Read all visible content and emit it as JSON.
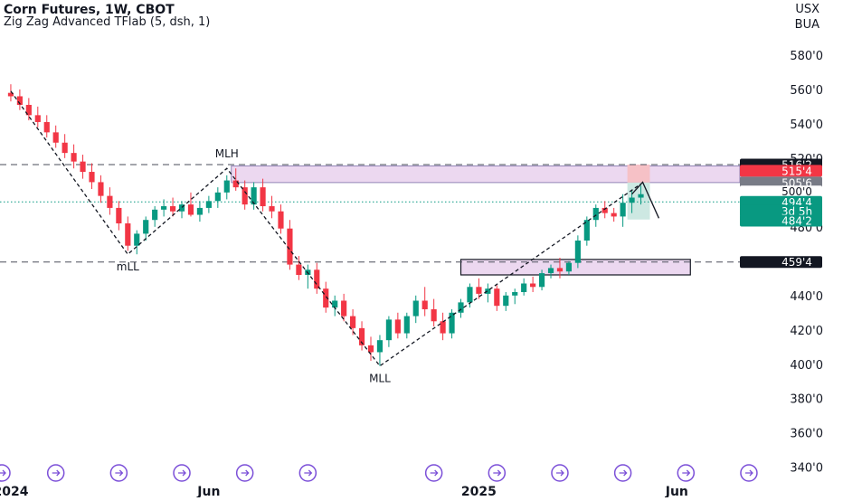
{
  "header": {
    "title": "Corn Futures, 1W, CBOT",
    "indicator": "Zig Zag Advanced TFlab (5, dsh, 1)",
    "currency": "USX",
    "unit": "BUA"
  },
  "colors": {
    "up": "#089981",
    "down": "#f23645",
    "zone_fill": "#ecd8f0",
    "target_fill": "#cde8e2",
    "stop_fill": "#f6c1c6",
    "axis_text": "#131722",
    "grid": "#e0e3eb"
  },
  "chart_data": {
    "type": "candlestick",
    "interval": "1W",
    "y_range": [
      333,
      591
    ],
    "x_range_weeks": [
      -1.2,
      81
    ],
    "y_ticks": [
      "580'0",
      "560'0",
      "540'0",
      "520'0",
      "480'0",
      "440'0",
      "420'0",
      "400'0",
      "380'0",
      "360'0",
      "340'0"
    ],
    "x_ticks": [
      {
        "label": "2024",
        "week": 0
      },
      {
        "label": "Jun",
        "week": 22
      },
      {
        "label": "2025",
        "week": 52
      },
      {
        "label": "Jun",
        "week": 74
      }
    ],
    "candles": [
      [
        558,
        563,
        553,
        556
      ],
      [
        556,
        560,
        548,
        551
      ],
      [
        551,
        555,
        542,
        545
      ],
      [
        545,
        550,
        538,
        541
      ],
      [
        541,
        545,
        532,
        535
      ],
      [
        535,
        539,
        526,
        529
      ],
      [
        529,
        534,
        520,
        523
      ],
      [
        523,
        528,
        514,
        518
      ],
      [
        518,
        522,
        508,
        512
      ],
      [
        512,
        517,
        502,
        506
      ],
      [
        506,
        510,
        494,
        498
      ],
      [
        498,
        503,
        487,
        491
      ],
      [
        491,
        495,
        478,
        482
      ],
      [
        482,
        486,
        466,
        469
      ],
      [
        469,
        478,
        464,
        476
      ],
      [
        476,
        486,
        472,
        484
      ],
      [
        484,
        492,
        480,
        490
      ],
      [
        490,
        496,
        486,
        492
      ],
      [
        492,
        497,
        486,
        489
      ],
      [
        489,
        495,
        485,
        493
      ],
      [
        493,
        500,
        486,
        487
      ],
      [
        487,
        495,
        483,
        491
      ],
      [
        491,
        498,
        488,
        495
      ],
      [
        495,
        503,
        491,
        500
      ],
      [
        500,
        510,
        496,
        507
      ],
      [
        507,
        514,
        501,
        503
      ],
      [
        503,
        507,
        490,
        493
      ],
      [
        493,
        506,
        490,
        503
      ],
      [
        503,
        508,
        489,
        492
      ],
      [
        492,
        498,
        485,
        489
      ],
      [
        489,
        493,
        476,
        479
      ],
      [
        479,
        484,
        455,
        458
      ],
      [
        458,
        463,
        449,
        452
      ],
      [
        452,
        458,
        444,
        455
      ],
      [
        455,
        459,
        441,
        444
      ],
      [
        444,
        448,
        430,
        433
      ],
      [
        433,
        440,
        428,
        437
      ],
      [
        437,
        441,
        425,
        428
      ],
      [
        428,
        432,
        417,
        421
      ],
      [
        421,
        425,
        408,
        411
      ],
      [
        411,
        416,
        402,
        407
      ],
      [
        407,
        417,
        399,
        414
      ],
      [
        414,
        428,
        410,
        426
      ],
      [
        426,
        430,
        415,
        418
      ],
      [
        418,
        430,
        415,
        428
      ],
      [
        428,
        440,
        424,
        437
      ],
      [
        437,
        445,
        428,
        432
      ],
      [
        432,
        438,
        422,
        425
      ],
      [
        425,
        430,
        414,
        418
      ],
      [
        418,
        432,
        415,
        430
      ],
      [
        430,
        438,
        427,
        436
      ],
      [
        436,
        447,
        433,
        445
      ],
      [
        445,
        450,
        438,
        441
      ],
      [
        441,
        447,
        436,
        444
      ],
      [
        444,
        446,
        431,
        434
      ],
      [
        434,
        442,
        431,
        440
      ],
      [
        440,
        444,
        435,
        442
      ],
      [
        442,
        450,
        440,
        447
      ],
      [
        447,
        451,
        442,
        445
      ],
      [
        445,
        455,
        443,
        453
      ],
      [
        453,
        458,
        450,
        456
      ],
      [
        456,
        462,
        450,
        454
      ],
      [
        454,
        460,
        452,
        459
      ],
      [
        459,
        475,
        456,
        472
      ],
      [
        472,
        486,
        469,
        484
      ],
      [
        484,
        493,
        480,
        491
      ],
      [
        491,
        495,
        485,
        488
      ],
      [
        488,
        491,
        483,
        486
      ],
      [
        486,
        499,
        480,
        494
      ],
      [
        494,
        501,
        488,
        497
      ],
      [
        497,
        504,
        493,
        499
      ]
    ],
    "zigzag": [
      {
        "week": 0,
        "price": 559
      },
      {
        "week": 13,
        "price": 464
      },
      {
        "week": 24,
        "price": 514
      },
      {
        "week": 41,
        "price": 399
      },
      {
        "week": 70,
        "price": 505
      }
    ],
    "zigzag_labels": [
      {
        "text": "mLL",
        "week": 13,
        "price": 464,
        "pos": "below"
      },
      {
        "text": "MLH",
        "week": 24,
        "price": 514,
        "pos": "above"
      },
      {
        "text": "MLL",
        "week": 41,
        "price": 399,
        "pos": "below"
      }
    ],
    "zones": [
      {
        "from_week": 24.5,
        "to_week": 81,
        "low": 505.75,
        "high": 515.5,
        "kind": "supply"
      },
      {
        "from_week": 50,
        "to_week": 75.5,
        "low": 452,
        "high": 461,
        "kind": "demand"
      }
    ],
    "position": {
      "from_week": 68.5,
      "to_week": 71,
      "entry": 505.75,
      "stop": 516.25,
      "target": 484.25
    },
    "projection": [
      {
        "week": 69,
        "price": 499
      },
      {
        "week": 70.2,
        "price": 506
      },
      {
        "week": 72,
        "price": 485
      }
    ],
    "hlines": [
      {
        "price": 516.25,
        "style": "dashed"
      },
      {
        "price": 459.5,
        "style": "dashed"
      },
      {
        "price": 494.5,
        "style": "dotted"
      }
    ],
    "price_labels": [
      {
        "text": "516'2",
        "price": 516.25,
        "bg": "#131722",
        "fg": "#ffffff"
      },
      {
        "text": "515'4",
        "price": 512.6,
        "bg": "#f23645",
        "fg": "#ffffff"
      },
      {
        "text": "505'6",
        "price": 505.75,
        "bg": "#787b86",
        "fg": "#ffffff"
      },
      {
        "text": "500'0",
        "price": 500.6,
        "bg": "#ffffff",
        "fg": "#131722"
      },
      {
        "text": "494'4",
        "price": 494.5,
        "bg": "#089981",
        "fg": "#ffffff"
      },
      {
        "text": "3d 5h",
        "price": 489.2,
        "bg": "#089981",
        "fg": "#ffffff"
      },
      {
        "text": "484'2",
        "price": 483.6,
        "bg": "#089981",
        "fg": "#ffffff"
      },
      {
        "text": "459'4",
        "price": 459.5,
        "bg": "#131722",
        "fg": "#ffffff"
      }
    ],
    "event_markers_weeks": [
      -1,
      5,
      12,
      19,
      26,
      33,
      47,
      54,
      61,
      68,
      75,
      82
    ]
  }
}
